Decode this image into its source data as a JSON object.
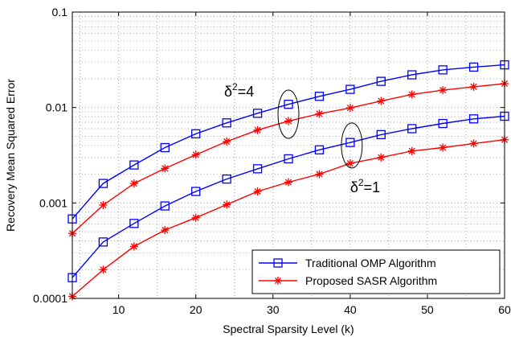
{
  "chart_data": {
    "type": "line",
    "xlabel": "Spectral Sparsity Level (k)",
    "ylabel": "Recovery Mean Squared Error",
    "xlim": [
      4,
      60
    ],
    "ylim": [
      0.0001,
      0.1
    ],
    "yscale": "log",
    "grid": true,
    "x": [
      4,
      8,
      12,
      16,
      20,
      24,
      28,
      32,
      36,
      40,
      44,
      48,
      52,
      56,
      60
    ],
    "xticks": [
      10,
      20,
      30,
      40,
      50,
      60
    ],
    "xtick_labels": [
      "10",
      "20",
      "30",
      "40",
      "50",
      "60"
    ],
    "yticks": [
      0.0001,
      0.001,
      0.01,
      0.1
    ],
    "ytick_labels": [
      "0.0001",
      "0.001",
      "0.01",
      "0.1"
    ],
    "legend": {
      "placement": "bottom-right"
    },
    "series": [
      {
        "name": "Traditional OMP Algorithm",
        "group": "δ²=4",
        "color": "#0000ff",
        "marker": "square",
        "values": [
          0.00068,
          0.0016,
          0.0025,
          0.0038,
          0.0053,
          0.0069,
          0.0087,
          0.0108,
          0.0131,
          0.0155,
          0.0188,
          0.022,
          0.0248,
          0.0265,
          0.028
        ]
      },
      {
        "name": "Proposed SASR Algorithm",
        "group": "δ²=4",
        "color": "#ff0000",
        "marker": "star",
        "values": [
          0.00048,
          0.00095,
          0.0016,
          0.0023,
          0.0032,
          0.0044,
          0.0058,
          0.0072,
          0.0086,
          0.0099,
          0.0117,
          0.0137,
          0.0152,
          0.0165,
          0.0178
        ]
      },
      {
        "name": "Traditional OMP Algorithm",
        "group": "δ²=1",
        "color": "#0000ff",
        "marker": "square",
        "values": [
          0.000165,
          0.00039,
          0.00061,
          0.00093,
          0.00132,
          0.00178,
          0.00228,
          0.0029,
          0.0036,
          0.0043,
          0.0052,
          0.006,
          0.0068,
          0.0076,
          0.0081
        ]
      },
      {
        "name": "Proposed SASR Algorithm",
        "group": "δ²=1",
        "color": "#ff0000",
        "marker": "star",
        "values": [
          0.000105,
          0.0002,
          0.00035,
          0.00052,
          0.0007,
          0.00096,
          0.00132,
          0.00165,
          0.002,
          0.0026,
          0.003,
          0.0035,
          0.0038,
          0.0042,
          0.0046
        ]
      }
    ],
    "annotations": [
      {
        "base": "δ",
        "sup": "2",
        "rest": "=4",
        "at_x": 32,
        "at_y": 0.0085
      },
      {
        "base": "δ",
        "sup": "2",
        "rest": "=1",
        "at_x": 40,
        "at_y": 0.004
      }
    ]
  }
}
